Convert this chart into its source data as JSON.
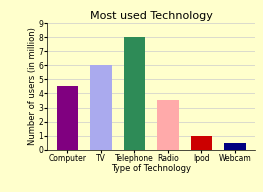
{
  "title": "Most used Technology",
  "xlabel": "Type of Technology",
  "ylabel": "Number of users (in million)",
  "categories": [
    "Computer",
    "TV",
    "Telephone",
    "Radio",
    "Ipod",
    "Webcam"
  ],
  "values": [
    4.5,
    6.0,
    8.0,
    3.5,
    1.0,
    0.5
  ],
  "bar_colors": [
    "#800080",
    "#aaaaee",
    "#2e8b57",
    "#ffaaaa",
    "#cc0000",
    "#000080"
  ],
  "background_color": "#ffffcc",
  "ylim": [
    0,
    9
  ],
  "yticks": [
    0,
    1,
    2,
    3,
    4,
    5,
    6,
    7,
    8,
    9
  ],
  "title_fontsize": 8,
  "axis_label_fontsize": 6,
  "tick_fontsize": 5.5,
  "bar_width": 0.65
}
